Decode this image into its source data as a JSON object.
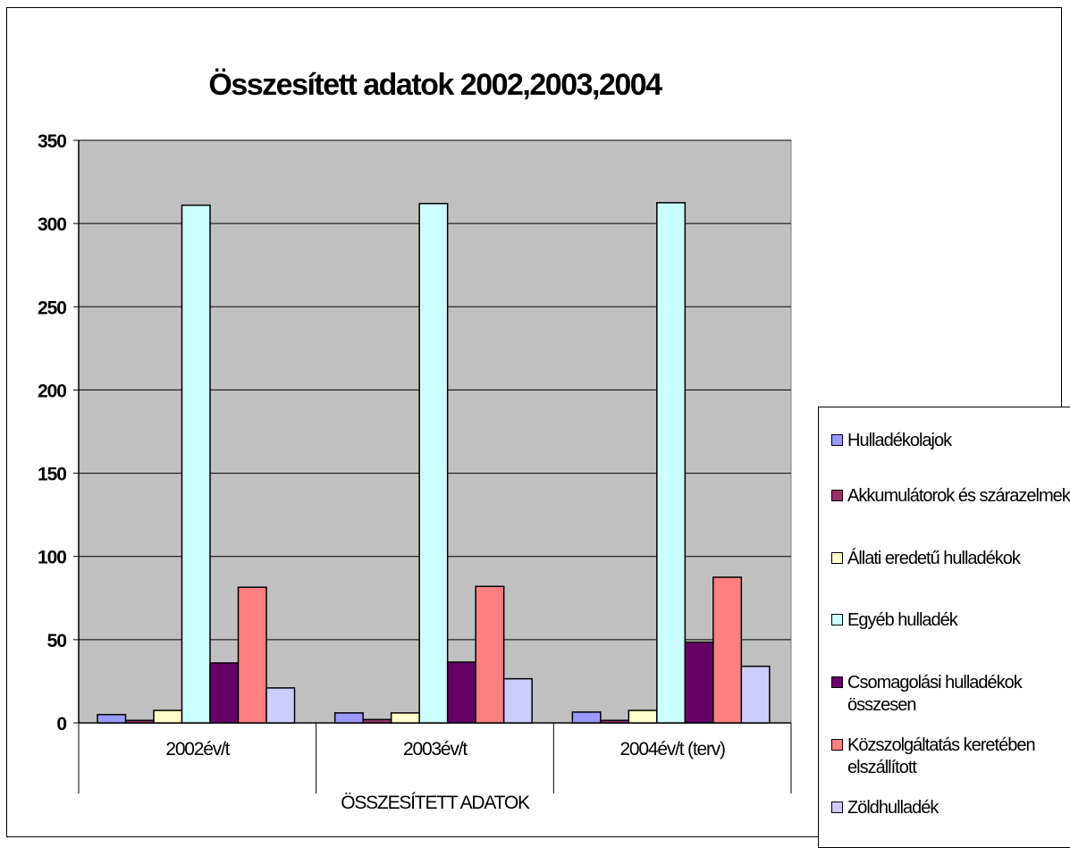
{
  "chart_data": {
    "type": "bar",
    "title": "Összesített adatok 2002,2003,2004",
    "categories": [
      "2002év/t",
      "2003év/t",
      "2004év/t (terv)"
    ],
    "group_label": "ÖSSZESÍTETT ADATOK",
    "ylim": [
      0,
      350
    ],
    "yticks": [
      "0",
      "50",
      "100",
      "150",
      "200",
      "250",
      "300",
      "350"
    ],
    "grid": true,
    "legend_position": "right",
    "series": [
      {
        "name": "Hulladékolajok",
        "color": "#9999ff",
        "values": [
          5,
          6,
          6.5
        ]
      },
      {
        "name": "Akkumulátorok és szárazelmek",
        "color": "#993366",
        "values": [
          1.5,
          2,
          1.5
        ]
      },
      {
        "name": "Állati eredetű hulladékok",
        "color": "#ffffcc",
        "values": [
          7.5,
          6,
          7.5
        ]
      },
      {
        "name": "Egyéb hulladék",
        "color": "#ccffff",
        "values": [
          311,
          312,
          312.5
        ]
      },
      {
        "name": "Csomagolási hulladékok összesen",
        "color": "#660066",
        "values": [
          36,
          36.5,
          48.5
        ]
      },
      {
        "name": "Közszolgáltatás keretében elszállított",
        "color": "#ff8080",
        "values": [
          81.5,
          82,
          87.5
        ]
      },
      {
        "name": "Zöldhulladék",
        "color": "#ccccff",
        "values": [
          21,
          26.5,
          34
        ]
      }
    ],
    "plot_background": "#c0c0c0"
  }
}
